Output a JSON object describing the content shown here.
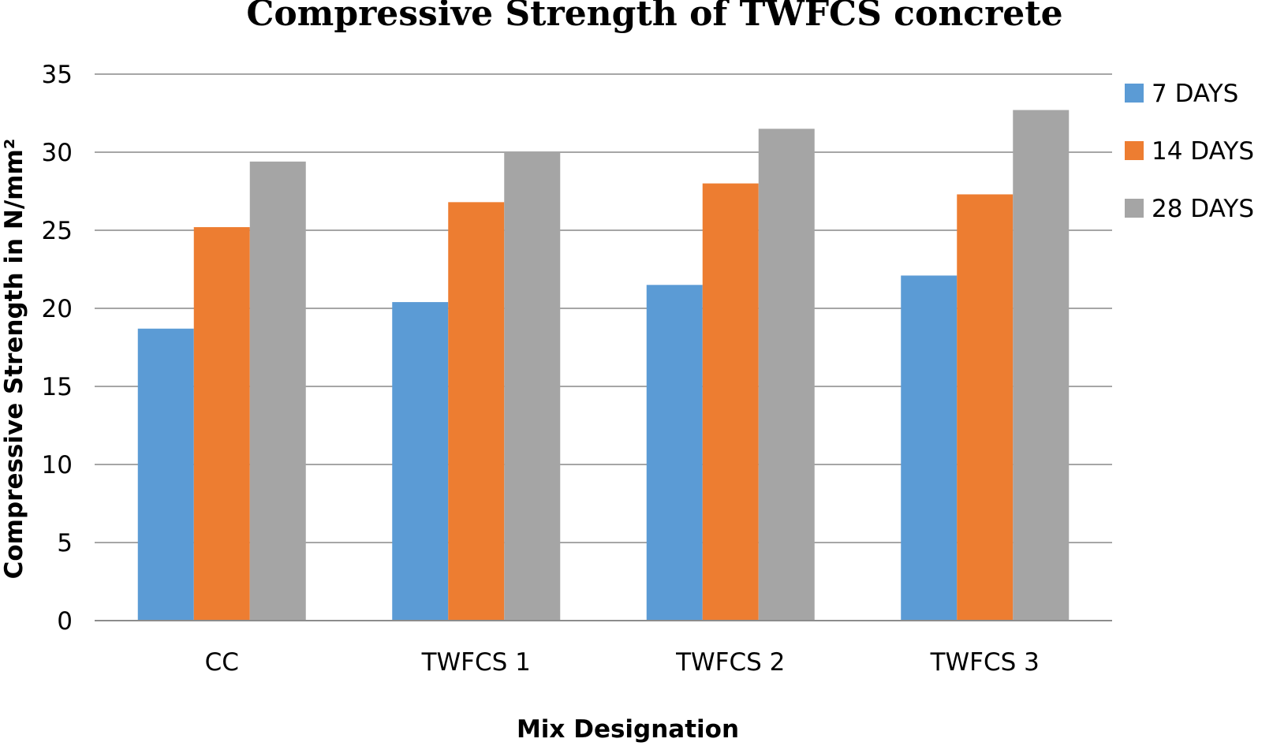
{
  "chart_data": {
    "type": "bar",
    "title": "Compressive Strength of TWFCS concrete",
    "xlabel": "Mix Designation",
    "ylabel": "Compressive Strength in N/mm²",
    "categories": [
      "CC",
      "TWFCS 1",
      "TWFCS 2",
      "TWFCS 3"
    ],
    "series": [
      {
        "name": "7 DAYS",
        "color": "#5b9bd5",
        "values": [
          18.7,
          20.4,
          21.5,
          22.1
        ]
      },
      {
        "name": "14 DAYS",
        "color": "#ed7d31",
        "values": [
          25.2,
          26.8,
          28.0,
          27.3
        ]
      },
      {
        "name": "28 DAYS",
        "color": "#a5a5a5",
        "values": [
          29.4,
          30.0,
          31.5,
          32.7
        ]
      }
    ],
    "ylim": [
      0,
      35
    ],
    "yticks": [
      0,
      5,
      10,
      15,
      20,
      25,
      30,
      35
    ],
    "grid": true,
    "legend_position": "top-right"
  }
}
